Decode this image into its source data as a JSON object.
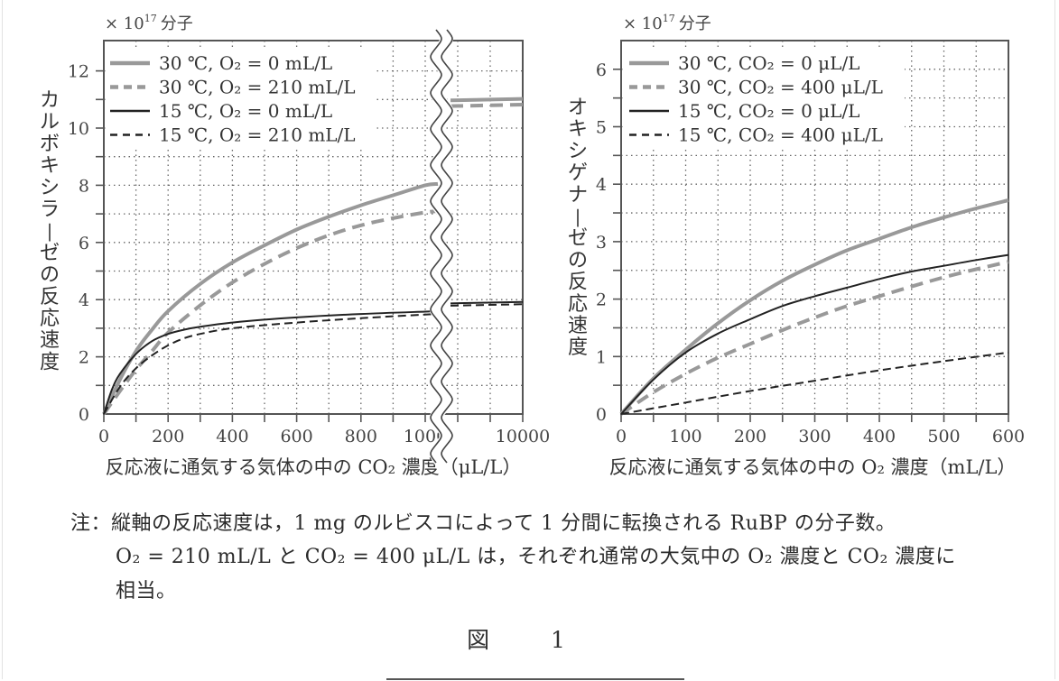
{
  "chart_data": [
    {
      "type": "line",
      "unit_label": "× 10^17 分子",
      "ylabel": "カルボキシラーゼの反応速度",
      "xlabel": "反応液に通気する気体の中の CO₂ 濃度（μL/L）",
      "ylim": [
        0,
        13
      ],
      "yticks": [
        0,
        2,
        4,
        6,
        8,
        10,
        12
      ],
      "xticks": [
        "0",
        "200",
        "400",
        "600",
        "800",
        "1000",
        "10000"
      ],
      "x_axis_break": "between 1000 and 10000",
      "grid": true,
      "legend_position": "top-left",
      "series": [
        {
          "name": "30 ℃, O₂ = 0 mL/L",
          "color": "#999999",
          "style": "solid",
          "width": 4,
          "x": [
            0,
            50,
            100,
            150,
            200,
            300,
            400,
            500,
            600,
            700,
            800,
            900,
            1000,
            10000
          ],
          "y": [
            0,
            1.2,
            2.2,
            2.95,
            3.6,
            4.55,
            5.3,
            5.9,
            6.45,
            6.9,
            7.3,
            7.65,
            8.0,
            11.0
          ]
        },
        {
          "name": "30 ℃, O₂ = 210 mL/L",
          "color": "#999999",
          "style": "dashed",
          "width": 4,
          "x": [
            0,
            50,
            100,
            150,
            200,
            300,
            400,
            500,
            600,
            700,
            800,
            900,
            1000,
            10000
          ],
          "y": [
            0,
            0.8,
            1.55,
            2.2,
            2.85,
            3.8,
            4.6,
            5.25,
            5.8,
            6.25,
            6.6,
            6.85,
            7.05,
            10.8
          ]
        },
        {
          "name": "15 ℃, O₂ = 0 mL/L",
          "color": "#222222",
          "style": "solid",
          "width": 2,
          "x": [
            0,
            25,
            50,
            100,
            150,
            200,
            250,
            300,
            400,
            600,
            800,
            1000,
            10000
          ],
          "y": [
            0,
            0.85,
            1.4,
            2.1,
            2.55,
            2.8,
            2.95,
            3.05,
            3.2,
            3.38,
            3.5,
            3.58,
            3.9
          ]
        },
        {
          "name": "15 ℃, O₂ = 210 mL/L",
          "color": "#222222",
          "style": "dashed",
          "width": 2,
          "x": [
            0,
            50,
            100,
            150,
            200,
            250,
            300,
            400,
            600,
            800,
            1000,
            10000
          ],
          "y": [
            0,
            0.95,
            1.6,
            2.05,
            2.4,
            2.65,
            2.8,
            3.0,
            3.2,
            3.35,
            3.48,
            3.82
          ]
        }
      ]
    },
    {
      "type": "line",
      "unit_label": "× 10^17 分子",
      "ylabel": "オキシゲナーゼの反応速度",
      "xlabel": "反応液に通気する気体の中の O₂ 濃度（mL/L）",
      "ylim": [
        0,
        6.5
      ],
      "xlim": [
        0,
        600
      ],
      "yticks": [
        0,
        1,
        2,
        3,
        4,
        5,
        6
      ],
      "xticks": [
        "0",
        "100",
        "200",
        "300",
        "400",
        "500",
        "600"
      ],
      "grid": true,
      "legend_position": "top-left",
      "series": [
        {
          "name": "30 ℃, CO₂ = 0 μL/L",
          "color": "#999999",
          "style": "solid",
          "width": 4,
          "x": [
            0,
            50,
            100,
            150,
            200,
            250,
            300,
            350,
            400,
            450,
            500,
            550,
            600
          ],
          "y": [
            0,
            0.62,
            1.12,
            1.58,
            1.98,
            2.32,
            2.6,
            2.85,
            3.05,
            3.25,
            3.42,
            3.58,
            3.72
          ]
        },
        {
          "name": "30 ℃, CO₂ = 400 μL/L",
          "color": "#999999",
          "style": "dashed",
          "width": 4,
          "x": [
            0,
            50,
            100,
            150,
            200,
            250,
            300,
            350,
            400,
            450,
            500,
            550,
            600
          ],
          "y": [
            0,
            0.38,
            0.7,
            0.98,
            1.22,
            1.46,
            1.68,
            1.88,
            2.05,
            2.22,
            2.38,
            2.52,
            2.65
          ]
        },
        {
          "name": "15 ℃, CO₂ = 0 μL/L",
          "color": "#222222",
          "style": "solid",
          "width": 2,
          "x": [
            0,
            50,
            100,
            150,
            200,
            250,
            300,
            350,
            400,
            450,
            500,
            550,
            600
          ],
          "y": [
            0,
            0.6,
            1.07,
            1.4,
            1.65,
            1.88,
            2.05,
            2.2,
            2.35,
            2.48,
            2.58,
            2.68,
            2.77
          ]
        },
        {
          "name": "15 ℃, CO₂ = 400 μL/L",
          "color": "#222222",
          "style": "dashed",
          "width": 2,
          "x": [
            0,
            100,
            200,
            300,
            400,
            500,
            600
          ],
          "y": [
            0,
            0.2,
            0.4,
            0.58,
            0.76,
            0.92,
            1.07
          ]
        }
      ]
    }
  ],
  "charts": [
    {
      "unit_label": "× 10",
      "unit_exp": "17",
      "unit_suffix": "分子",
      "ylabel": "カルボキシラーゼの反応速度",
      "xlabel": "反応液に通気する気体の中の CO₂ 濃度（μL/L）",
      "legend": [
        "30 ℃,  O₂ = 0 mL/L",
        "30 ℃,  O₂ = 210 mL/L",
        "15 ℃,  O₂ = 0 mL/L",
        "15 ℃,  O₂ = 210 mL/L"
      ]
    },
    {
      "unit_label": "× 10",
      "unit_exp": "17",
      "unit_suffix": "分子",
      "ylabel": "オキシゲナーゼの反応速度",
      "xlabel": "反応液に通気する気体の中の O₂ 濃度（mL/L）",
      "legend": [
        "30 ℃,  CO₂ = 0 μL/L",
        "30 ℃,  CO₂ = 400 μL/L",
        "15 ℃,  CO₂ = 0 μL/L",
        "15 ℃,  CO₂ = 400 μL/L"
      ]
    }
  ],
  "note": {
    "line1": "注：縦軸の反応速度は，1 mg のルビスコによって 1 分間に転換される RuBP の分子数。",
    "line2": "O₂ = 210 mL/L と CO₂ = 400 μL/L は，それぞれ通常の大気中の O₂ 濃度と CO₂ 濃度に",
    "line3": "相当。"
  },
  "figure_caption": "図 1",
  "colors": {
    "gray_series": "#999999",
    "black_series": "#222222",
    "axis": "#555555",
    "grid": "#666666"
  }
}
